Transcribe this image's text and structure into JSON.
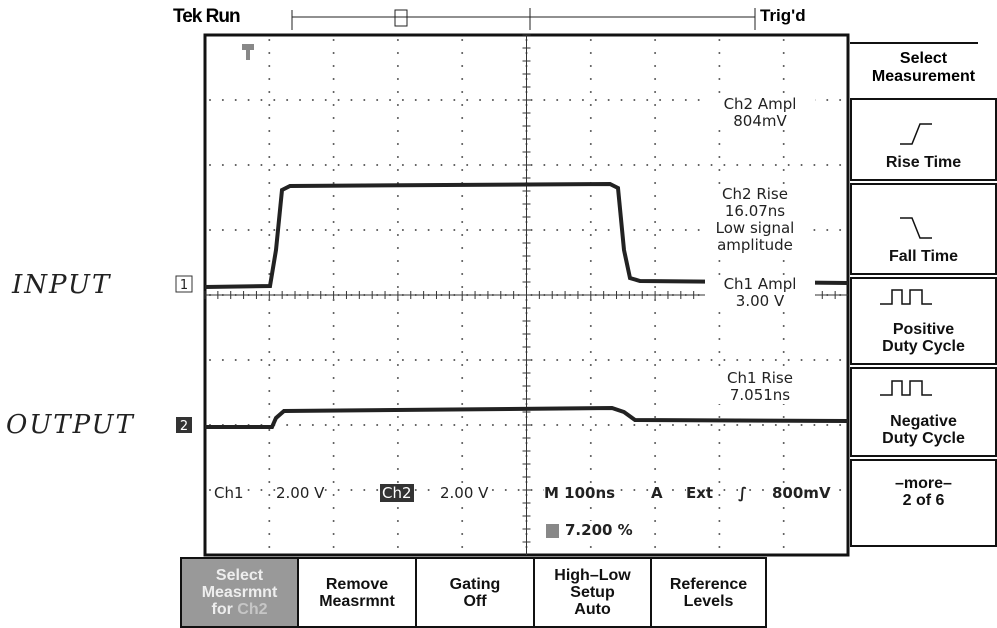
{
  "header": {
    "brand": "Tek",
    "state": "Run",
    "trigger": "Trig'd"
  },
  "annotations": {
    "input": "INPUT",
    "output": "OUTPUT"
  },
  "channels": [
    "1",
    "2"
  ],
  "readouts": [
    {
      "lines": [
        "Ch2 Ampl",
        "804mV"
      ]
    },
    {
      "lines": [
        "Ch2 Rise",
        "16.07ns",
        "Low signal",
        "amplitude"
      ]
    },
    {
      "lines": [
        "Ch1 Ampl",
        "3.00 V"
      ]
    },
    {
      "lines": [
        "Ch1 Rise",
        "7.051ns"
      ]
    }
  ],
  "status": {
    "ch1": "Ch1",
    "ch1_scale": "2.00 V",
    "ch2": "Ch2",
    "ch2_scale": "2.00 V",
    "timebase": "M 100ns",
    "source_a": "A",
    "source": "Ext",
    "level": "800mV",
    "trigger_pos": "7.200 %"
  },
  "side_menu": {
    "title": [
      "Select",
      "Measurement"
    ],
    "items": [
      {
        "lines": [
          "Rise Time"
        ]
      },
      {
        "lines": [
          "Fall Time"
        ]
      },
      {
        "lines": [
          "Positive",
          "Duty Cycle"
        ]
      },
      {
        "lines": [
          "Negative",
          "Duty Cycle"
        ]
      },
      {
        "lines": [
          "–more–",
          "2 of 6"
        ]
      }
    ]
  },
  "bottom_menu": [
    {
      "lines": [
        "Select",
        "Measrmnt"
      ],
      "last": "for",
      "channel": "Ch2"
    },
    {
      "lines": [
        "Remove",
        "Measrmnt"
      ]
    },
    {
      "lines": [
        "Gating",
        "Off"
      ]
    },
    {
      "lines": [
        "High–Low",
        "Setup",
        "Auto"
      ]
    },
    {
      "lines": [
        "Reference",
        "Levels"
      ]
    }
  ]
}
